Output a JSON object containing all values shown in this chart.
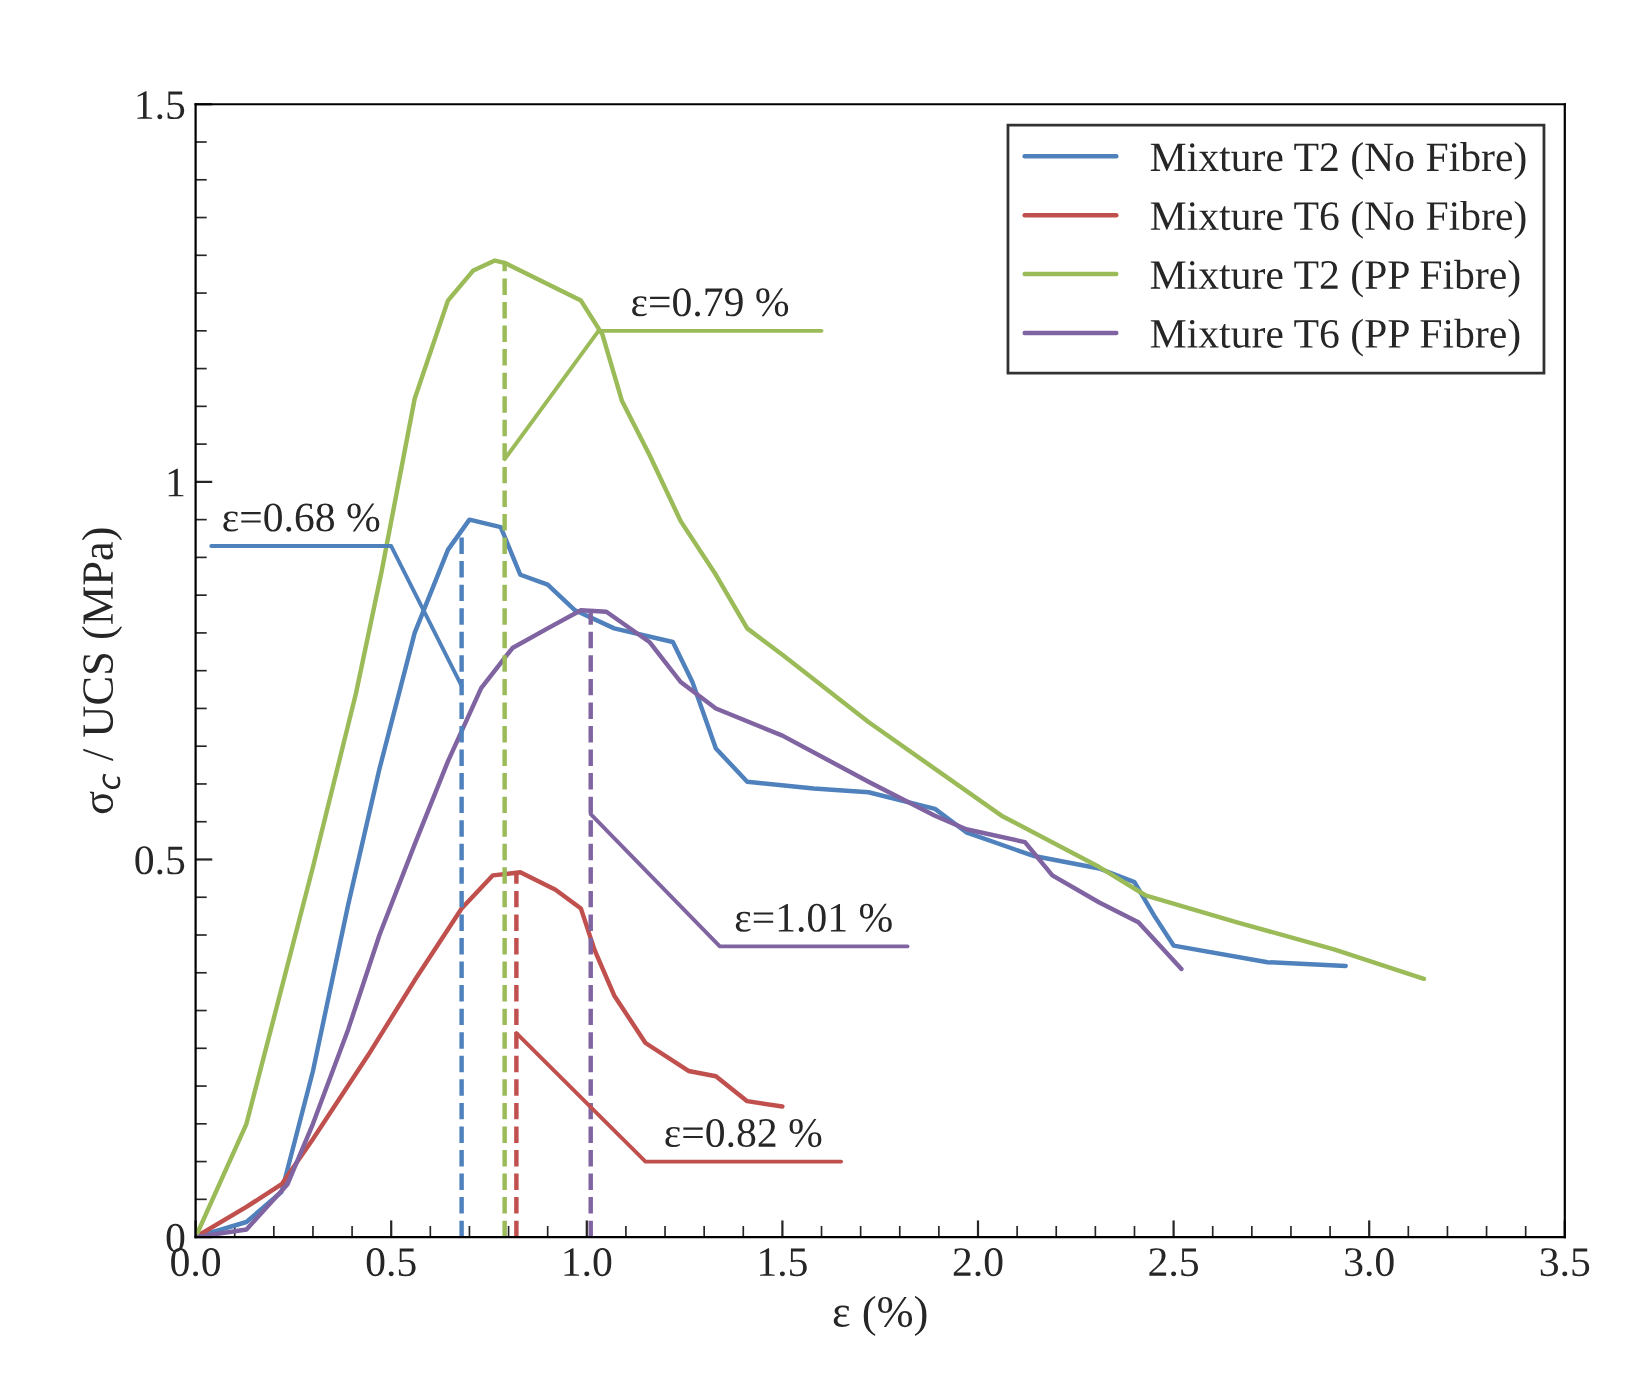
{
  "chart_data": {
    "type": "line",
    "xlabel": "ε (%)",
    "ylabel": "σ$_{c}$ / UCS (MPa)",
    "xlim": [
      0,
      3.5
    ],
    "ylim": [
      0,
      1.5
    ],
    "xticks": [
      {
        "value": 0,
        "label": "0.0"
      },
      0.5,
      {
        "value": 1,
        "label": "1.0"
      },
      1.5,
      {
        "value": 2,
        "label": "2.0"
      },
      2.5,
      {
        "value": 3,
        "label": "3.0"
      },
      3.5
    ],
    "yticks": [
      0,
      0.5,
      1,
      1.5
    ],
    "grid": false,
    "legend": "top right",
    "marker": "none",
    "line_style": "solid",
    "series": [
      {
        "name": "Mixture T2 (No Fibre)",
        "color": "#4f81bd",
        "x": [
          0,
          0.13,
          0.22,
          0.3,
          0.39,
          0.47,
          0.56,
          0.645,
          0.7,
          0.78,
          0.83,
          0.9,
          0.97,
          1.07,
          1.22,
          1.27,
          1.33,
          1.41,
          1.58,
          1.72,
          1.89,
          1.97,
          2.14,
          2.31,
          2.4,
          2.45,
          2.5,
          2.74,
          2.94
        ],
        "values": [
          0,
          0.02,
          0.06,
          0.22,
          0.44,
          0.62,
          0.8,
          0.91,
          0.95,
          0.94,
          0.877,
          0.864,
          0.83,
          0.806,
          0.788,
          0.735,
          0.647,
          0.603,
          0.594,
          0.589,
          0.567,
          0.536,
          0.505,
          0.488,
          0.47,
          0.426,
          0.386,
          0.364,
          0.359
        ]
      },
      {
        "name": "Mixture T6 (No Fibre)",
        "color": "#c0504d",
        "x": [
          0,
          0.13,
          0.22,
          0.3,
          0.44,
          0.56,
          0.68,
          0.76,
          0.83,
          0.92,
          0.985,
          1.02,
          1.07,
          1.15,
          1.26,
          1.33,
          1.41,
          1.5
        ],
        "values": [
          0,
          0.04,
          0.07,
          0.13,
          0.24,
          0.34,
          0.435,
          0.479,
          0.483,
          0.46,
          0.435,
          0.38,
          0.32,
          0.257,
          0.22,
          0.213,
          0.18,
          0.173
        ]
      },
      {
        "name": "Mixture T2 (PP Fibre)",
        "color": "#9bbb59",
        "x": [
          0,
          0.13,
          0.3,
          0.41,
          0.475,
          0.56,
          0.645,
          0.71,
          0.765,
          0.79,
          0.985,
          1.04,
          1.09,
          1.16,
          1.24,
          1.33,
          1.41,
          1.5,
          1.72,
          2.06,
          2.31,
          2.43,
          2.66,
          2.91,
          3.14
        ],
        "values": [
          0,
          0.15,
          0.49,
          0.72,
          0.88,
          1.11,
          1.24,
          1.28,
          1.293,
          1.29,
          1.24,
          1.195,
          1.107,
          1.036,
          0.948,
          0.877,
          0.806,
          0.771,
          0.682,
          0.558,
          0.49,
          0.452,
          0.417,
          0.381,
          0.342
        ]
      },
      {
        "name": "Mixture T6 (PP Fibre)",
        "color": "#8064a2",
        "x": [
          0,
          0.13,
          0.235,
          0.3,
          0.39,
          0.47,
          0.56,
          0.645,
          0.73,
          0.81,
          0.9,
          0.985,
          1.05,
          1.16,
          1.24,
          1.33,
          1.5,
          1.72,
          1.89,
          1.97,
          2.12,
          2.19,
          2.31,
          2.41,
          2.52
        ],
        "values": [
          0,
          0.01,
          0.07,
          0.15,
          0.275,
          0.4,
          0.52,
          0.63,
          0.727,
          0.78,
          0.806,
          0.83,
          0.828,
          0.788,
          0.735,
          0.7,
          0.664,
          0.603,
          0.558,
          0.54,
          0.523,
          0.479,
          0.443,
          0.417,
          0.355
        ]
      }
    ],
    "ref_lines": [
      {
        "axis": "x",
        "value": 0.68,
        "label": "ε=0.68 %",
        "color": "#4f81bd",
        "line_style": "dashed"
      },
      {
        "axis": "x",
        "value": 0.79,
        "label": "ε=0.79 %",
        "color": "#9bbb59",
        "line_style": "dashed"
      },
      {
        "axis": "x",
        "value": 1.01,
        "label": "ε=1.01 %",
        "color": "#8064a2",
        "line_style": "dashed"
      },
      {
        "axis": "x",
        "value": 0.82,
        "label": "ε=0.82 %",
        "color": "#c0504d",
        "line_style": "dashed"
      }
    ]
  }
}
